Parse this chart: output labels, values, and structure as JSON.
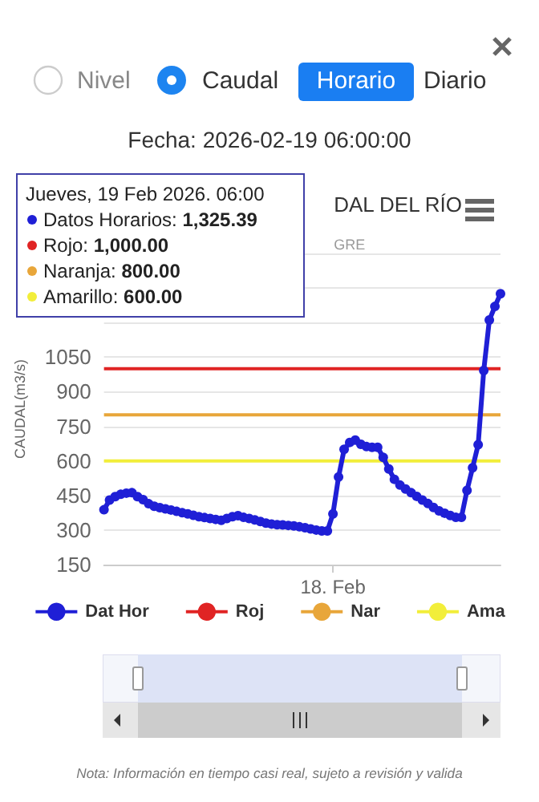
{
  "chart_data": {
    "type": "line",
    "title": "DAL DEL RÍO",
    "subtitle": "GRE",
    "ylabel": "CAUDAL(m3/s)",
    "categories": [
      null,
      null,
      null,
      null,
      null,
      null,
      null,
      null,
      null,
      null,
      null,
      null,
      null,
      null,
      null,
      null,
      null,
      null,
      null,
      null,
      null,
      null,
      null,
      null,
      null,
      null,
      null,
      null,
      null,
      null,
      null,
      null,
      null,
      null,
      null,
      null,
      null,
      null,
      null,
      null,
      null,
      "18. Feb",
      null,
      null,
      null,
      null,
      null,
      null,
      null,
      null,
      null,
      null,
      null,
      null,
      null,
      null,
      null,
      null,
      null,
      null,
      null,
      null,
      null,
      null,
      null,
      null,
      null,
      null,
      null,
      null,
      null,
      null
    ],
    "series": [
      {
        "name": "Dat Hor",
        "color": "#1f1fd6",
        "marker": "circle",
        "values": [
          388,
          430,
          445,
          455,
          460,
          462,
          445,
          432,
          414,
          403,
          397,
          392,
          387,
          381,
          375,
          370,
          364,
          358,
          354,
          350,
          346,
          342,
          350,
          358,
          362,
          355,
          350,
          344,
          337,
          330,
          326,
          323,
          322,
          320,
          318,
          314,
          310,
          305,
          300,
          296,
          296,
          370,
          530,
          650,
          680,
          690,
          672,
          662,
          659,
          659,
          615,
          565,
          520,
          495,
          478,
          462,
          446,
          430,
          415,
          398,
          383,
          373,
          363,
          355,
          355,
          472,
          570,
          670,
          992,
          1211,
          1270,
          1325.39
        ]
      },
      {
        "name": "Roj",
        "color": "#e02424",
        "marker": "none",
        "values": [
          1000,
          1000,
          1000,
          1000,
          1000,
          1000,
          1000,
          1000,
          1000,
          1000,
          1000,
          1000,
          1000,
          1000,
          1000,
          1000,
          1000,
          1000,
          1000,
          1000,
          1000,
          1000,
          1000,
          1000,
          1000,
          1000,
          1000,
          1000,
          1000,
          1000,
          1000,
          1000,
          1000,
          1000,
          1000,
          1000,
          1000,
          1000,
          1000,
          1000,
          1000,
          1000,
          1000,
          1000,
          1000,
          1000,
          1000,
          1000,
          1000,
          1000,
          1000,
          1000,
          1000,
          1000,
          1000,
          1000,
          1000,
          1000,
          1000,
          1000,
          1000,
          1000,
          1000,
          1000,
          1000,
          1000,
          1000,
          1000,
          1000,
          1000,
          1000,
          1000
        ]
      },
      {
        "name": "Nar",
        "color": "#e8a63a",
        "marker": "none",
        "values": [
          800,
          800,
          800,
          800,
          800,
          800,
          800,
          800,
          800,
          800,
          800,
          800,
          800,
          800,
          800,
          800,
          800,
          800,
          800,
          800,
          800,
          800,
          800,
          800,
          800,
          800,
          800,
          800,
          800,
          800,
          800,
          800,
          800,
          800,
          800,
          800,
          800,
          800,
          800,
          800,
          800,
          800,
          800,
          800,
          800,
          800,
          800,
          800,
          800,
          800,
          800,
          800,
          800,
          800,
          800,
          800,
          800,
          800,
          800,
          800,
          800,
          800,
          800,
          800,
          800,
          800,
          800,
          800,
          800,
          800,
          800,
          800
        ]
      },
      {
        "name": "Ama",
        "color": "#f2ee3a",
        "marker": "none",
        "values": [
          600,
          600,
          600,
          600,
          600,
          600,
          600,
          600,
          600,
          600,
          600,
          600,
          600,
          600,
          600,
          600,
          600,
          600,
          600,
          600,
          600,
          600,
          600,
          600,
          600,
          600,
          600,
          600,
          600,
          600,
          600,
          600,
          600,
          600,
          600,
          600,
          600,
          600,
          600,
          600,
          600,
          600,
          600,
          600,
          600,
          600,
          600,
          600,
          600,
          600,
          600,
          600,
          600,
          600,
          600,
          600,
          600,
          600,
          600,
          600,
          600,
          600,
          600,
          600,
          600,
          600,
          600,
          600,
          600,
          600,
          600,
          600
        ]
      }
    ],
    "ylim": [
      150,
      1500
    ],
    "yticks": [
      150,
      300,
      450,
      600,
      750,
      900,
      1050,
      {
        "value": 1200,
        "label": null
      },
      {
        "value": 1350,
        "label": null
      },
      {
        "value": 1500,
        "label": null
      }
    ],
    "grid": "y",
    "legend": "bottom",
    "annotations": [
      "Nivel",
      "Caudal",
      "Horario",
      "Diario",
      "Fecha: 2026-02-19 06:00:00",
      "Jueves, 19 Feb 2026. 06:00",
      "Datos Horarios: 1,325.39",
      "Rojo: 1,000.00",
      "Naranja: 800.00",
      "Amarillo: 600.00",
      "Nota: Información en tiempo casi real, sujeto a revisión y valida"
    ]
  }
}
